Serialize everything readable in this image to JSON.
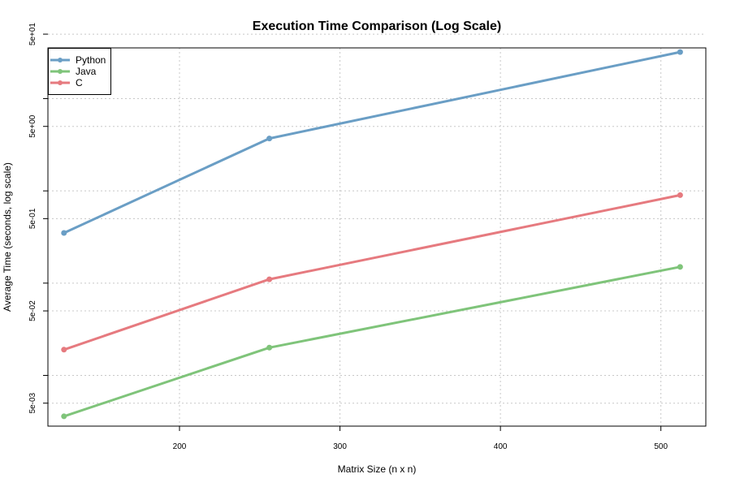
{
  "chart_data": {
    "type": "line",
    "title": "Execution Time Comparison (Log Scale)",
    "xlabel": "Matrix Size (n x n)",
    "ylabel": "Average Time (seconds, log scale)",
    "x": [
      128,
      256,
      512
    ],
    "series": [
      {
        "name": "Python",
        "color": "#6a9ec5",
        "values": [
          0.35,
          3.7,
          32
        ]
      },
      {
        "name": "Java",
        "color": "#7fc47a",
        "values": [
          0.0036,
          0.02,
          0.15
        ]
      },
      {
        "name": "C",
        "color": "#e67a7f",
        "values": [
          0.019,
          0.11,
          0.9
        ]
      }
    ],
    "xlim": [
      118,
      528
    ],
    "ylim_log10": [
      -2.55,
      1.55
    ],
    "x_ticks": [
      200,
      300,
      400,
      500
    ],
    "x_tick_labels": [
      "200",
      "300",
      "400",
      "500"
    ],
    "y_ticks": [
      0.005,
      0.05,
      0.5,
      5,
      50
    ],
    "y_tick_labels": [
      "5e-03",
      "5e-02",
      "5e-01",
      "5e+00",
      "5e+01"
    ],
    "y_minor_ticks": [
      0.01,
      0.1,
      1,
      10
    ],
    "grid": true,
    "grid_style": "dotted",
    "legend_position": "top-left"
  }
}
